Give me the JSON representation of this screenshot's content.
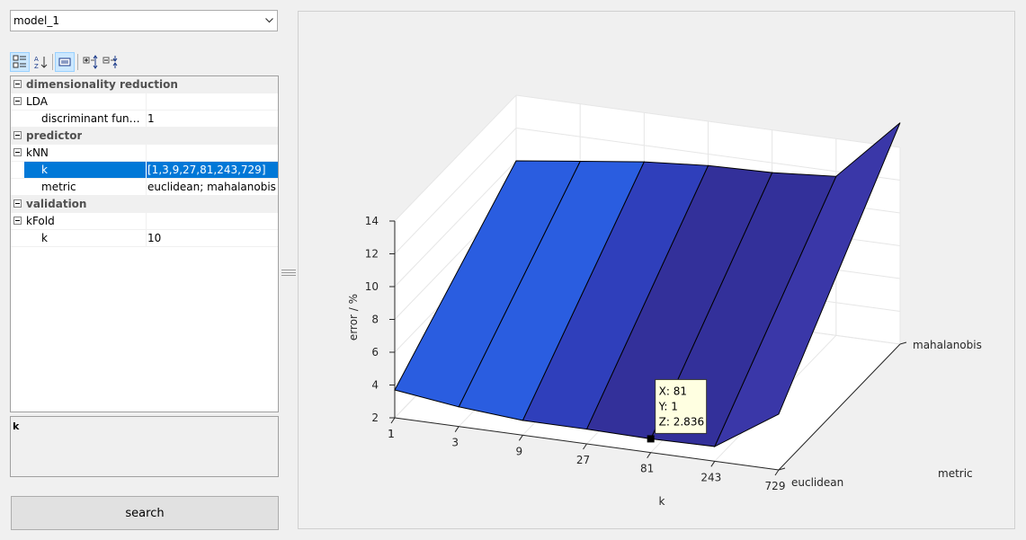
{
  "model_select": {
    "value": "model_1"
  },
  "toolbar": {
    "categorized": "categorized-view-icon",
    "alphabetical": "sort-alphabetical-icon",
    "property_pages": "property-pages-icon",
    "expand_all": "expand-all-icon",
    "collapse_all": "collapse-all-icon"
  },
  "grid": {
    "rows": [
      {
        "label": "dimensionality reduction",
        "value": ""
      },
      {
        "label": "LDA",
        "value": ""
      },
      {
        "label": "discriminant functi…",
        "value": "1"
      },
      {
        "label": "predictor",
        "value": ""
      },
      {
        "label": "kNN",
        "value": ""
      },
      {
        "label": "k",
        "value": "[1,3,9,27,81,243,729]"
      },
      {
        "label": "metric",
        "value": "euclidean; mahalanobis"
      },
      {
        "label": "validation",
        "value": ""
      },
      {
        "label": "kFold",
        "value": ""
      },
      {
        "label": "k",
        "value": "10"
      }
    ]
  },
  "description": {
    "title": "k"
  },
  "search_button": {
    "label": "search"
  },
  "chart_data": {
    "type": "surface",
    "zlabel": "error / %",
    "xlabel": "k",
    "ylabel": "metric",
    "x_ticks": [
      "1",
      "3",
      "9",
      "27",
      "81",
      "243",
      "729"
    ],
    "y_ticks": [
      "euclidean",
      "mahalanobis"
    ],
    "z_ticks": [
      "2",
      "4",
      "6",
      "8",
      "10",
      "12",
      "14"
    ],
    "zlim": [
      2,
      14
    ],
    "x": [
      1,
      3,
      9,
      27,
      81,
      243,
      729
    ],
    "series": [
      {
        "name": "euclidean",
        "values": [
          3.7,
          3.2,
          2.9,
          2.9,
          2.836,
          2.9,
          5.4
        ]
      },
      {
        "name": "mahalanobis",
        "values": [
          10.0,
          10.5,
          11.0,
          11.3,
          11.4,
          11.7,
          15.5
        ]
      }
    ],
    "grid": true,
    "colors": {
      "surface": "#3a37a8",
      "surface_light": "#2a5de0",
      "datatip_bg": "#ffffe1"
    },
    "datatip": {
      "x_label": "X: 81",
      "y_label": "Y: 1",
      "z_label": "Z: 2.836"
    }
  }
}
